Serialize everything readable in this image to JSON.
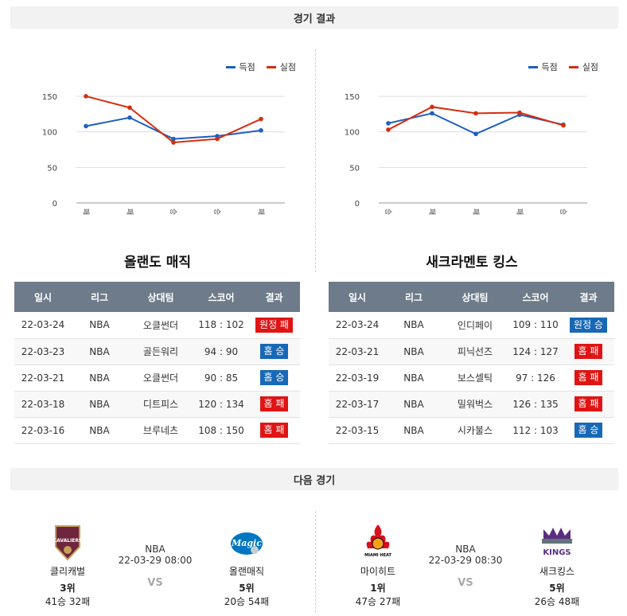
{
  "sections": {
    "results_title": "경기 결과",
    "next_title": "다음 경기"
  },
  "legend": {
    "scored": "득점",
    "conceded": "실점",
    "scored_color": "#1f5fbf",
    "conceded_color": "#d62d0f"
  },
  "chart_data": [
    {
      "type": "line",
      "team": "올랜도 매직",
      "categories": [
        "패",
        "패",
        "승",
        "승",
        "패"
      ],
      "series": [
        {
          "name": "득점",
          "values": [
            108,
            120,
            90,
            94,
            102
          ]
        },
        {
          "name": "실점",
          "values": [
            150,
            134,
            85,
            90,
            118
          ]
        }
      ],
      "yticks": [
        0,
        50,
        100,
        150
      ],
      "ylim": [
        0,
        160
      ],
      "grid": true,
      "legend_position": "top-right"
    },
    {
      "type": "line",
      "team": "새크라멘토 킹스",
      "categories": [
        "승",
        "패",
        "패",
        "패",
        "승"
      ],
      "series": [
        {
          "name": "득점",
          "values": [
            112,
            126,
            97,
            124,
            110
          ]
        },
        {
          "name": "실점",
          "values": [
            103,
            135,
            126,
            127,
            109
          ]
        }
      ],
      "yticks": [
        0,
        50,
        100,
        150
      ],
      "ylim": [
        0,
        160
      ],
      "grid": true,
      "legend_position": "top-right"
    }
  ],
  "left_team": {
    "title": "올랜도 매직",
    "headers": [
      "일시",
      "리그",
      "상대팀",
      "스코어",
      "결과"
    ],
    "rows": [
      {
        "date": "22-03-24",
        "league": "NBA",
        "opponent": "오클썬더",
        "score": "118 : 102",
        "result": "원정 패",
        "outcome": "loss"
      },
      {
        "date": "22-03-23",
        "league": "NBA",
        "opponent": "골든워리",
        "score": "94 : 90",
        "result": "홈 승",
        "outcome": "win"
      },
      {
        "date": "22-03-21",
        "league": "NBA",
        "opponent": "오클썬더",
        "score": "90 : 85",
        "result": "홈 승",
        "outcome": "win"
      },
      {
        "date": "22-03-18",
        "league": "NBA",
        "opponent": "디트피스",
        "score": "120 : 134",
        "result": "홈 패",
        "outcome": "loss"
      },
      {
        "date": "22-03-16",
        "league": "NBA",
        "opponent": "브루네츠",
        "score": "108 : 150",
        "result": "홈 패",
        "outcome": "loss"
      }
    ]
  },
  "right_team": {
    "title": "새크라멘토 킹스",
    "headers": [
      "일시",
      "리그",
      "상대팀",
      "스코어",
      "결과"
    ],
    "rows": [
      {
        "date": "22-03-24",
        "league": "NBA",
        "opponent": "인디페이",
        "score": "109 : 110",
        "result": "원정 승",
        "outcome": "win"
      },
      {
        "date": "22-03-21",
        "league": "NBA",
        "opponent": "피닉선즈",
        "score": "124 : 127",
        "result": "홈 패",
        "outcome": "loss"
      },
      {
        "date": "22-03-19",
        "league": "NBA",
        "opponent": "보스셀틱",
        "score": "97 : 126",
        "result": "홈 패",
        "outcome": "loss"
      },
      {
        "date": "22-03-17",
        "league": "NBA",
        "opponent": "밀워벅스",
        "score": "126 : 135",
        "result": "홈 패",
        "outcome": "loss"
      },
      {
        "date": "22-03-15",
        "league": "NBA",
        "opponent": "시카불스",
        "score": "112 : 103",
        "result": "홈 승",
        "outcome": "win"
      }
    ]
  },
  "next_games": [
    {
      "league": "NBA",
      "datetime": "22-03-29 08:00",
      "vs": "VS",
      "home": {
        "name": "클리캐벌",
        "rank": "3위",
        "record": "41승 32패",
        "logo": "cavaliers-logo",
        "logo_text": "CAVALIERS"
      },
      "away": {
        "name": "올랜매직",
        "rank": "5위",
        "record": "20승 54패",
        "logo": "magic-logo",
        "logo_text": "Magic"
      }
    },
    {
      "league": "NBA",
      "datetime": "22-03-29 08:30",
      "vs": "VS",
      "home": {
        "name": "마이히트",
        "rank": "1위",
        "record": "47승 27패",
        "logo": "heat-logo",
        "logo_text": "MIAMI HEAT"
      },
      "away": {
        "name": "새크킹스",
        "rank": "5위",
        "record": "26승 48패",
        "logo": "kings-logo",
        "logo_text": "KINGS"
      }
    }
  ]
}
